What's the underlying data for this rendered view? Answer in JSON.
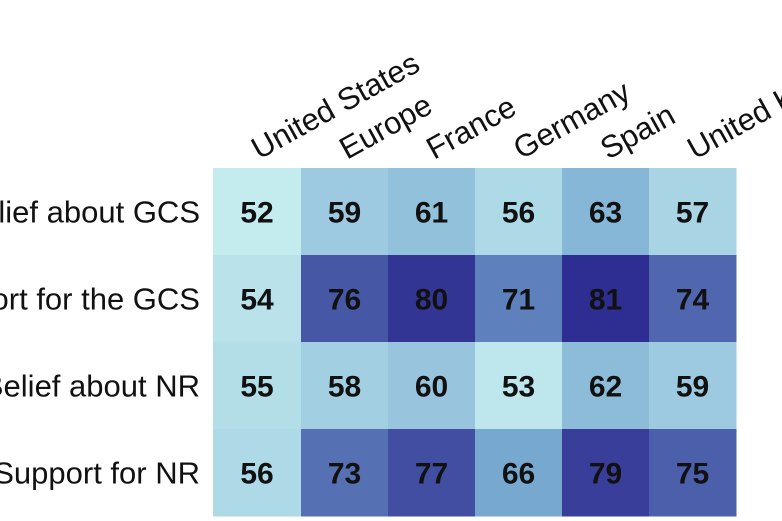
{
  "chart_data": {
    "type": "heatmap",
    "columns": [
      "United States",
      "Europe",
      "France",
      "Germany",
      "Spain",
      "United Kingdom"
    ],
    "rows": [
      "Belief about GCS",
      "Support for the GCS",
      "Belief about NR",
      "Support for NR"
    ],
    "values": [
      [
        52,
        59,
        61,
        56,
        63,
        57
      ],
      [
        54,
        76,
        80,
        71,
        81,
        74
      ],
      [
        55,
        58,
        60,
        53,
        62,
        59
      ],
      [
        56,
        73,
        77,
        66,
        79,
        75
      ]
    ],
    "color_scale": {
      "min_value": 52,
      "max_value": 81,
      "low_color": "#c4ecef",
      "mid_color": "#74a6cf",
      "high_color": "#2e2d91"
    }
  }
}
